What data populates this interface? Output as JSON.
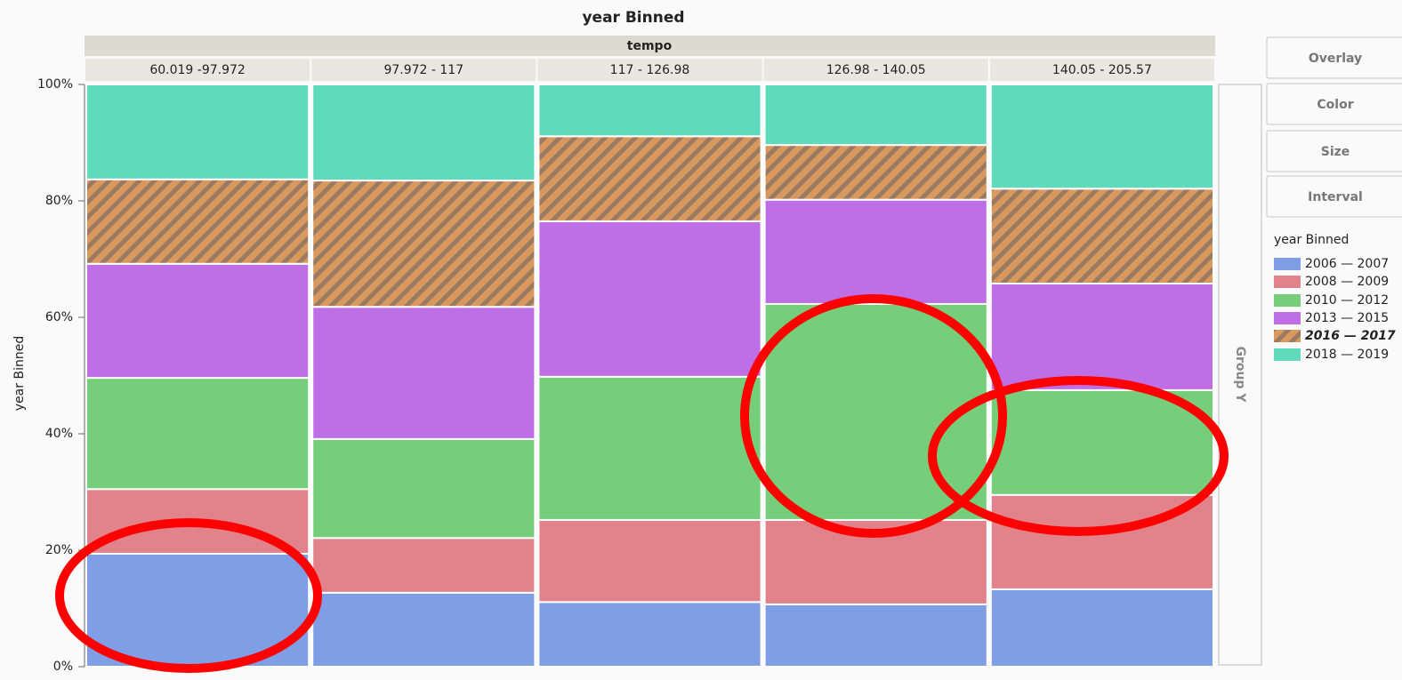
{
  "chart_data": {
    "type": "stacked_bar",
    "title": "year Binned",
    "facet_label": "tempo",
    "y_label": "year Binned",
    "legend_title": "year Binned",
    "categories": [
      "60.019 -97.972",
      "97.972 - 117",
      "117 - 126.98",
      "126.98 - 140.05",
      "140.05 - 205.57"
    ],
    "series": [
      {
        "name": "2006 — 2007",
        "color": "#7f9ee6",
        "values": [
          19.4,
          12.7,
          11.1,
          10.7,
          13.3
        ]
      },
      {
        "name": "2008 — 2009",
        "color": "#e2828b",
        "values": [
          11.1,
          9.4,
          14.1,
          14.5,
          16.2
        ]
      },
      {
        "name": "2010 — 2012",
        "color": "#76cd7a",
        "values": [
          19.1,
          17.0,
          24.6,
          37.1,
          18.0
        ]
      },
      {
        "name": "2013 — 2015",
        "color": "#bf6fe6",
        "values": [
          19.6,
          22.7,
          26.7,
          17.9,
          18.3
        ]
      },
      {
        "name": "2016 — 2017",
        "color": "#d9995e",
        "pattern": "hatch",
        "values": [
          14.5,
          21.7,
          14.6,
          9.4,
          16.3
        ]
      },
      {
        "name": "2018 — 2019",
        "color": "#5fdabb",
        "values": [
          16.3,
          16.5,
          8.9,
          10.4,
          17.9
        ]
      }
    ],
    "ylim": [
      0,
      100
    ],
    "yticks": [
      {
        "value": 0,
        "label": "0%"
      },
      {
        "value": 20,
        "label": "20%"
      },
      {
        "value": 40,
        "label": "40%"
      },
      {
        "value": 60,
        "label": "60%"
      },
      {
        "value": 80,
        "label": "80%"
      },
      {
        "value": 100,
        "label": "100%"
      }
    ]
  },
  "panel": {
    "buttons": [
      "Overlay",
      "Color",
      "Size",
      "Interval"
    ],
    "group_y": "Group Y"
  }
}
